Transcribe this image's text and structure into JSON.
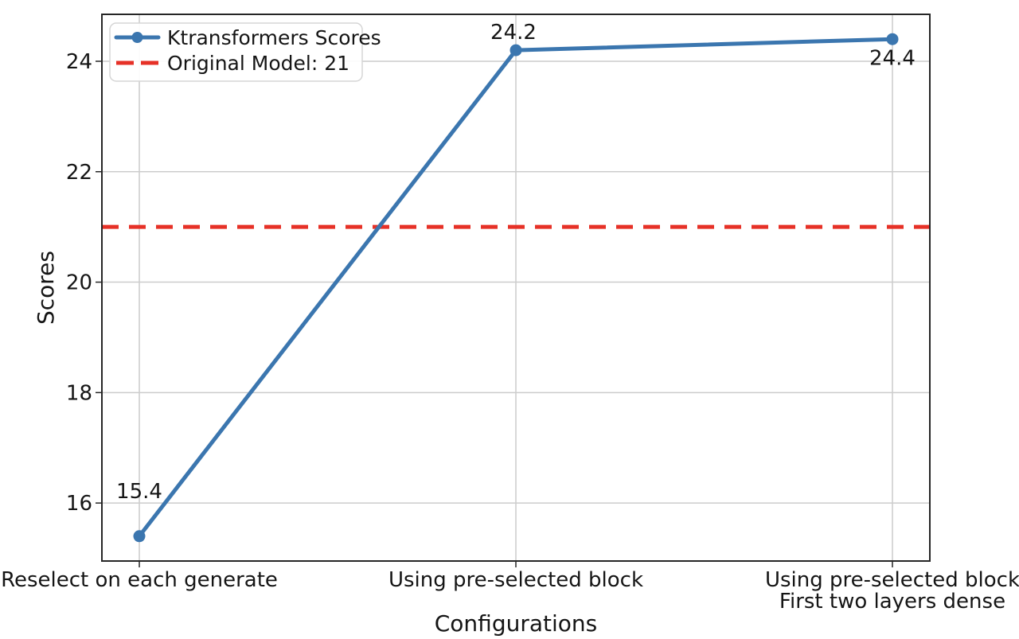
{
  "chart_data": {
    "type": "line",
    "title": "",
    "xlabel": "Configurations",
    "ylabel": "Scores",
    "categories": [
      "Reselect on each generate",
      "Using pre-selected block",
      "Using pre-selected block\nFirst two layers dense"
    ],
    "series": [
      {
        "name": "Ktransformers Scores",
        "values": [
          15.4,
          24.2,
          24.4
        ],
        "color": "#3b76af",
        "marker": "circle",
        "point_labels": [
          "15.4",
          "24.2",
          "24.4"
        ]
      }
    ],
    "reference_line": {
      "label": "Original Model: 21",
      "value": 21,
      "color": "#e63127",
      "style": "dashed"
    },
    "yticks": [
      16,
      18,
      20,
      22,
      24
    ],
    "ylim": [
      14.95,
      24.85
    ],
    "grid": true,
    "legend": {
      "position": "upper-left",
      "entries": [
        {
          "label": "Ktransformers Scores",
          "type": "line-marker",
          "color": "#3b76af"
        },
        {
          "label": "Original Model: 21",
          "type": "dashed",
          "color": "#e63127"
        }
      ]
    },
    "colors": {
      "grid": "#cccccc",
      "spine": "#262626",
      "text": "#151515",
      "legend_border": "#d5d5d5",
      "background": "#ffffff"
    }
  }
}
